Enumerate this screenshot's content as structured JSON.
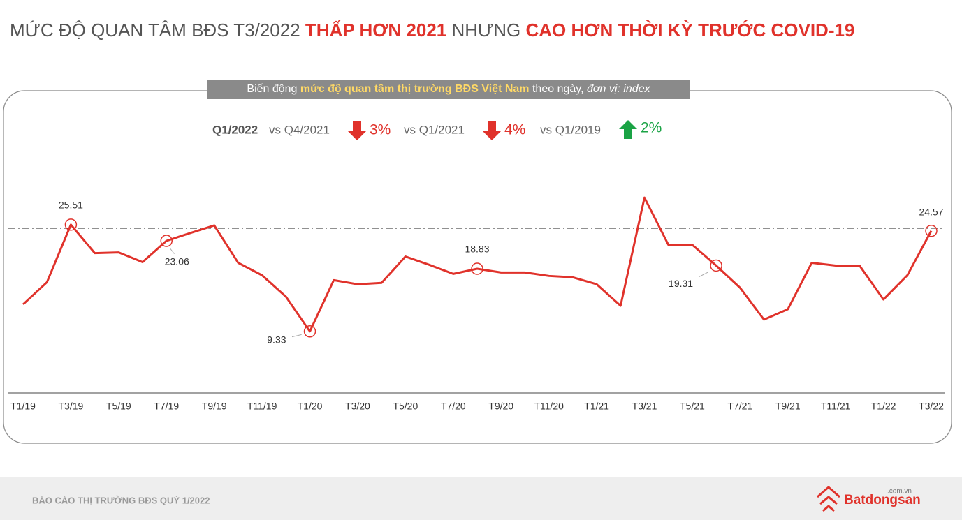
{
  "header": {
    "title_parts": [
      "MỨC ĐỘ QUAN TÂM BĐS T3/2022",
      "THẤP HƠN 2021",
      "NHƯNG",
      "CAO HƠN THỜI KỲ TRƯỚC COVID-19"
    ]
  },
  "chart_data": {
    "type": "line",
    "subtitle_parts": [
      "Biến động",
      "mức độ quan tâm thị trường BĐS Việt Nam",
      "theo ngày,",
      "đơn vị: index"
    ],
    "comparison_base": "Q1/2022",
    "comparisons": [
      {
        "label": "vs Q4/2021",
        "change": "3%",
        "direction": "down"
      },
      {
        "label": "vs Q1/2021",
        "change": "4%",
        "direction": "down"
      },
      {
        "label": "vs Q1/2019",
        "change": "2%",
        "direction": "up"
      }
    ],
    "categories": [
      "T1/19",
      null,
      "T3/19",
      null,
      "T5/19",
      null,
      "T7/19",
      null,
      "T9/19",
      null,
      "T11/19",
      null,
      "T1/20",
      null,
      "T3/20",
      null,
      "T5/20",
      null,
      "T7/20",
      null,
      "T9/20",
      null,
      "T11/20",
      null,
      "T1/21",
      null,
      "T3/21",
      null,
      "T5/21",
      null,
      "T7/21",
      null,
      "T9/21",
      null,
      "T11/21",
      null,
      "T1/22",
      null,
      "T3/22"
    ],
    "series": [
      {
        "color": "#e0322b",
        "values": [
          13.43,
          16.79,
          25.51,
          21.2,
          21.3,
          19.84,
          23.06,
          24.25,
          25.4,
          19.73,
          17.84,
          14.59,
          9.33,
          17.1,
          16.48,
          16.69,
          20.68,
          19.42,
          18.05,
          18.83,
          18.26,
          18.26,
          17.74,
          17.53,
          16.48,
          13.22,
          29.61,
          22.46,
          22.46,
          19.31,
          15.95,
          11.12,
          12.7,
          19.73,
          19.31,
          19.31,
          14.17,
          17.84,
          24.57
        ]
      }
    ],
    "labeled_points": [
      2,
      6,
      12,
      19,
      29,
      38
    ],
    "reference_line": 25,
    "ylim": [
      0,
      42
    ]
  },
  "footer": {
    "report": "BÁO CÁO THỊ TRƯỜNG BĐS QUÝ 1/2022",
    "brand": "Batdongsan",
    "domain": ".com.vn"
  }
}
